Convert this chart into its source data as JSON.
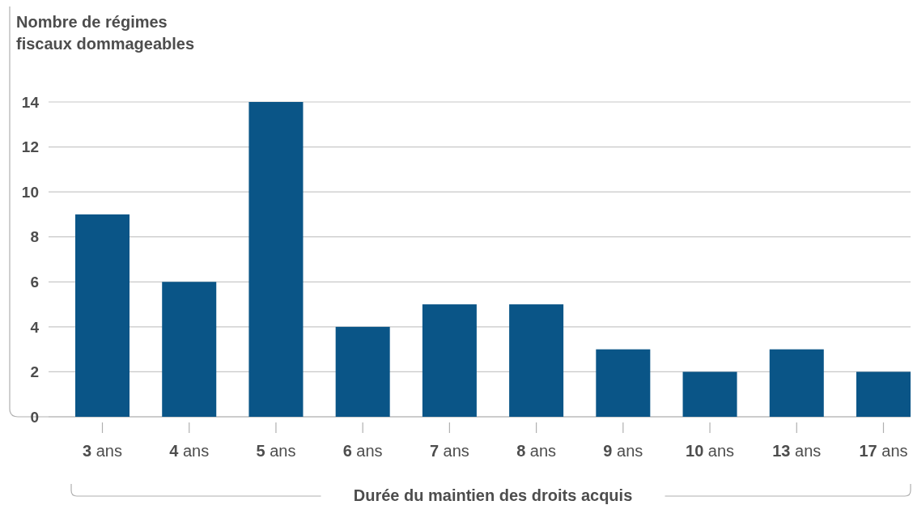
{
  "chart_data": {
    "type": "bar",
    "ylabel": "Nombre de régimes fiscaux dommageables",
    "xlabel": "Durée du maintien des droits acquis",
    "categories": [
      "3 ans",
      "4 ans",
      "5 ans",
      "6 ans",
      "7 ans",
      "8 ans",
      "9 ans",
      "10 ans",
      "13 ans",
      "17 ans"
    ],
    "values": [
      9,
      6,
      14,
      4,
      5,
      5,
      3,
      2,
      3,
      2
    ],
    "color": "#0a5587",
    "ylim": [
      0,
      14
    ],
    "yticks": [
      0,
      2,
      4,
      6,
      8,
      10,
      12,
      14
    ],
    "grid": "y"
  }
}
